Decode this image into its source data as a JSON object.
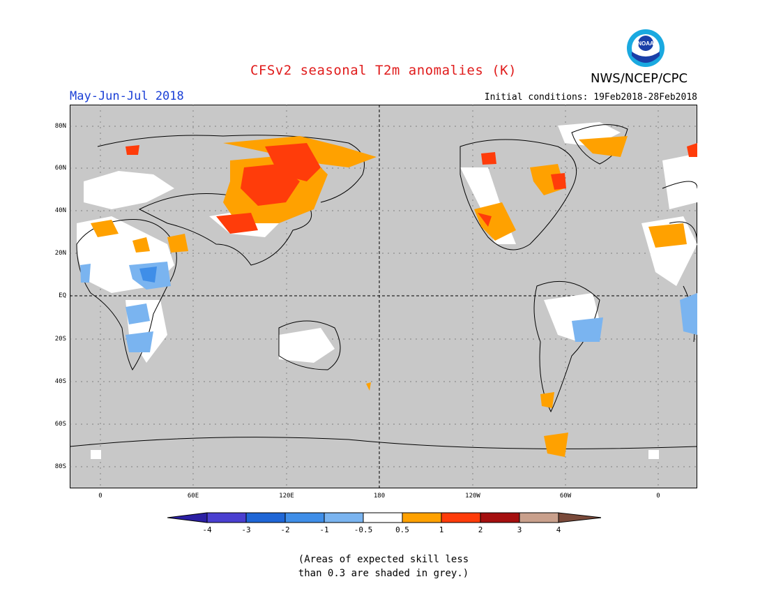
{
  "title": "CFSv2 seasonal T2m anomalies (K)",
  "agency": "NWS/NCEP/CPC",
  "logo_text": "NOAA",
  "period": "May-Jun-Jul 2018",
  "initial_conditions": "Initial conditions: 19Feb2018-28Feb2018",
  "lat_labels": [
    "80N",
    "60N",
    "40N",
    "20N",
    "EQ",
    "20S",
    "40S",
    "60S",
    "80S"
  ],
  "lon_labels": [
    "0",
    "60E",
    "120E",
    "180",
    "120W",
    "60W",
    "0"
  ],
  "colorbar": {
    "labels": [
      "-4",
      "-3",
      "-2",
      "-1",
      "-0.5",
      "0.5",
      "1",
      "2",
      "3",
      "4"
    ],
    "colors": [
      "#2b1fa3",
      "#4a3fd0",
      "#1f66d6",
      "#3f8ee8",
      "#7ab4f0",
      "#ffffff",
      "#ffa100",
      "#ff3c0a",
      "#a50f0f",
      "#c9a08c",
      "#7a4a3a"
    ]
  },
  "note_line1": "(Areas of expected skill less",
  "note_line2": "than 0.3 are shaded in grey.)"
}
